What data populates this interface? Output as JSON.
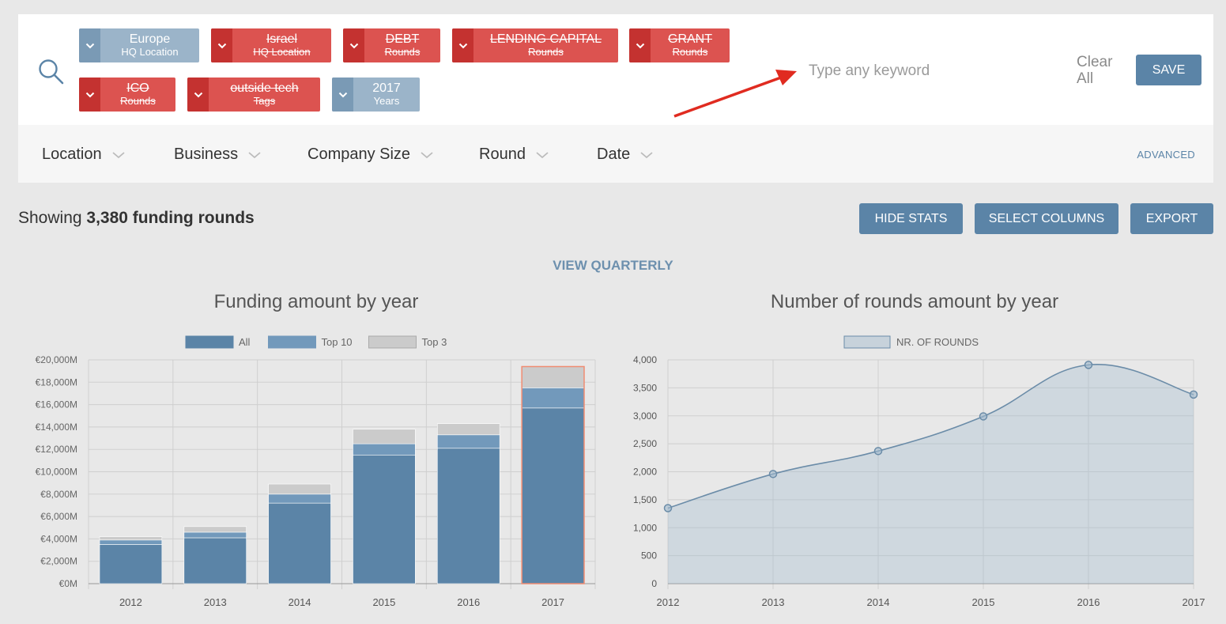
{
  "chips": [
    {
      "label": "Europe",
      "sub": "HQ Location",
      "style": "blue"
    },
    {
      "label": "Israel",
      "sub": "HQ Location",
      "style": "red"
    },
    {
      "label": "DEBT",
      "sub": "Rounds",
      "style": "red"
    },
    {
      "label": "LENDING CAPITAL",
      "sub": "Rounds",
      "style": "red"
    },
    {
      "label": "GRANT",
      "sub": "Rounds",
      "style": "red"
    },
    {
      "label": "ICO",
      "sub": "Rounds",
      "style": "red"
    },
    {
      "label": "outside tech",
      "sub": "Tags",
      "style": "red"
    },
    {
      "label": "2017",
      "sub": "Years",
      "style": "blue"
    }
  ],
  "search": {
    "placeholder": "Type any keyword",
    "clear_label": "Clear All",
    "save_label": "SAVE"
  },
  "filters": [
    "Location",
    "Business",
    "Company Size",
    "Round",
    "Date"
  ],
  "advanced_label": "ADVANCED",
  "summary": {
    "prefix": "Showing ",
    "count": "3,380 funding rounds"
  },
  "actions": {
    "hide_stats": "HIDE STATS",
    "select_columns": "SELECT COLUMNS",
    "export": "EXPORT"
  },
  "view_quarterly": "VIEW QUARTERLY",
  "colors": {
    "accent": "#5b84a7",
    "chip_red": "#dc5350",
    "chip_blue": "#9bb4c9",
    "all": "#5b84a7",
    "top10": "#7299bb",
    "top3": "#cbcbcb",
    "highlight": "#f08c72"
  },
  "chart_data": [
    {
      "type": "bar",
      "title": "Funding amount by year",
      "categories": [
        "2012",
        "2013",
        "2014",
        "2015",
        "2016",
        "2017"
      ],
      "stacked": true,
      "series": [
        {
          "name": "All",
          "values": [
            3500,
            4100,
            7200,
            11500,
            12100,
            15700
          ]
        },
        {
          "name": "Top 10",
          "values": [
            400,
            500,
            800,
            1000,
            1200,
            1800
          ]
        },
        {
          "name": "Top 3",
          "values": [
            300,
            500,
            900,
            1300,
            1000,
            1900
          ]
        }
      ],
      "yticks": [
        "€0M",
        "€2,000M",
        "€4,000M",
        "€6,000M",
        "€8,000M",
        "€10,000M",
        "€12,000M",
        "€14,000M",
        "€16,000M",
        "€18,000M",
        "€20,000M"
      ],
      "ylim": [
        0,
        20000
      ],
      "highlight_category": "2017",
      "legend": "top-center",
      "grid": true
    },
    {
      "type": "area",
      "title": "Number of rounds amount by year",
      "x": [
        "2012",
        "2013",
        "2014",
        "2015",
        "2016",
        "2017"
      ],
      "series": [
        {
          "name": "NR. OF ROUNDS",
          "values": [
            1350,
            1960,
            2370,
            2990,
            3910,
            3380
          ]
        }
      ],
      "yticks": [
        "0",
        "500",
        "1,000",
        "1,500",
        "2,000",
        "2,500",
        "3,000",
        "3,500",
        "4,000"
      ],
      "ylim": [
        0,
        4000
      ],
      "legend": "top-center",
      "grid": true
    }
  ]
}
